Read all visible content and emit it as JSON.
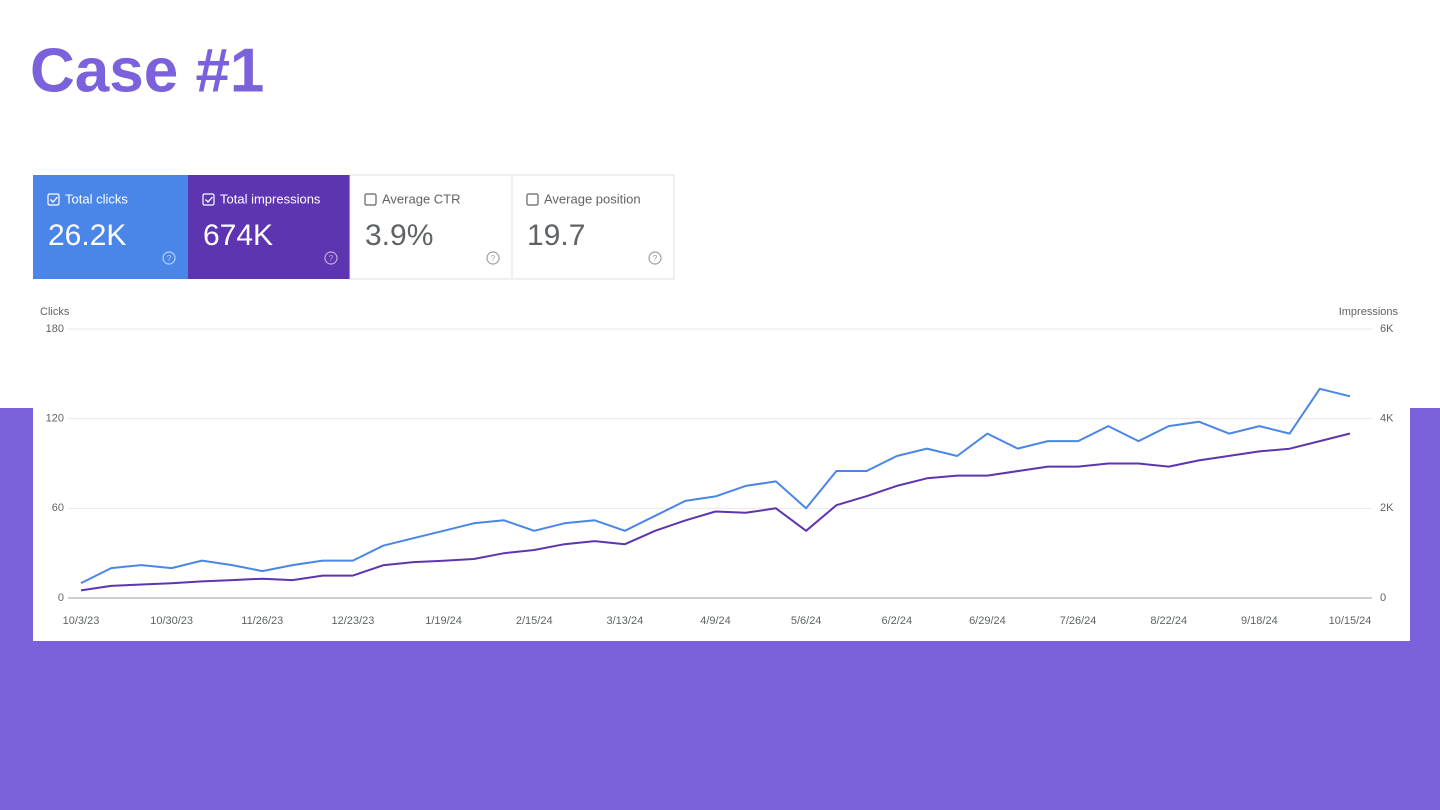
{
  "header": {
    "title": "Case #1"
  },
  "cards": [
    {
      "label": "Total clicks",
      "value": "26.2K",
      "selected": true,
      "color": "#4a86e8"
    },
    {
      "label": "Total impressions",
      "value": "674K",
      "selected": true,
      "color": "#5e35b1"
    },
    {
      "label": "Average CTR",
      "value": "3.9%",
      "selected": false,
      "color": "#ffffff"
    },
    {
      "label": "Average position",
      "value": "19.7",
      "selected": false,
      "color": "#ffffff"
    }
  ],
  "chart_data": {
    "type": "line",
    "categories": [
      "10/3/23",
      null,
      null,
      "10/30/23",
      null,
      null,
      "11/26/23",
      null,
      null,
      "12/23/23",
      null,
      null,
      "1/19/24",
      null,
      null,
      "2/15/24",
      null,
      null,
      "3/13/24",
      null,
      null,
      "4/9/24",
      null,
      null,
      "5/6/24",
      null,
      null,
      "6/2/24",
      null,
      null,
      "6/29/24",
      null,
      null,
      "7/26/24",
      null,
      null,
      "8/22/24",
      null,
      null,
      "9/18/24",
      null,
      null,
      "10/15/24"
    ],
    "series": [
      {
        "name": "Clicks",
        "color": "#4a86e8",
        "axis": "y",
        "values": [
          10,
          20,
          22,
          20,
          25,
          22,
          18,
          22,
          25,
          25,
          35,
          40,
          45,
          50,
          52,
          45,
          50,
          52,
          45,
          55,
          65,
          68,
          75,
          78,
          60,
          85,
          85,
          95,
          100,
          95,
          110,
          100,
          105,
          105,
          115,
          105,
          115,
          118,
          110,
          115,
          110,
          140,
          135
        ]
      },
      {
        "name": "Impressions",
        "color": "#5e35b1",
        "axis": "y2",
        "values": [
          170,
          270,
          300,
          330,
          370,
          400,
          430,
          400,
          500,
          500,
          730,
          800,
          830,
          870,
          1000,
          1070,
          1200,
          1270,
          1200,
          1500,
          1730,
          1930,
          1900,
          2000,
          1500,
          2070,
          2270,
          2500,
          2670,
          2730,
          2730,
          2830,
          2930,
          2930,
          3000,
          3000,
          2930,
          3070,
          3170,
          3270,
          3330,
          3500,
          3670
        ]
      }
    ],
    "ylim": [
      0,
      180
    ],
    "yticks": [
      0,
      60,
      120,
      180
    ],
    "y2lim": [
      0,
      6000
    ],
    "y2ticks": [
      0,
      {
        "value": 2000,
        "label": "2K"
      },
      {
        "value": 4000,
        "label": "4K"
      },
      {
        "value": 6000,
        "label": "6K"
      }
    ],
    "grid": true
  }
}
